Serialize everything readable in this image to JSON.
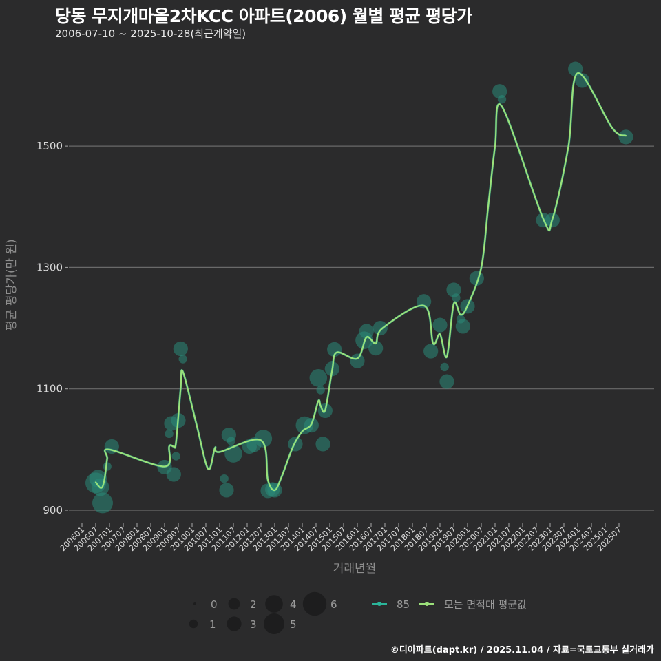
{
  "header": {
    "title": "당동 무지개마을2차KCC 아파트(2006) 월별 평균 평당가",
    "subtitle": "2006-07-10 ~ 2025-10-28(최근계약일)"
  },
  "footer": {
    "credit": "©디아파트(dapt.kr) / 2025.11.04 / 자료=국토교통부 실거래가"
  },
  "colors": {
    "background": "#2b2b2c",
    "grid": "#6a6a6a",
    "bubble": "#2a8a7a",
    "line_85": "#2bb59a",
    "line_avg": "#9be07a"
  },
  "chart_data": {
    "type": "line",
    "title": "당동 무지개마을2차KCC 아파트(2006) 월별 평균 평당가",
    "subtitle": "2006-07-10 ~ 2025-10-28(최근계약일)",
    "xlabel": "거래년월",
    "ylabel": "평균 평당가(만 원)",
    "ylim": [
      880,
      1650
    ],
    "yticks": [
      900,
      1100,
      1300,
      1500
    ],
    "xticks": [
      "200601",
      "200607",
      "200701",
      "200707",
      "200801",
      "200807",
      "200901",
      "200907",
      "201001",
      "201007",
      "201101",
      "201107",
      "201201",
      "201207",
      "201301",
      "201307",
      "201401",
      "201407",
      "201501",
      "201507",
      "201601",
      "201607",
      "201701",
      "201707",
      "201801",
      "201807",
      "201901",
      "201907",
      "202001",
      "202007",
      "202101",
      "202107",
      "202201",
      "202207",
      "202301",
      "202307",
      "202401",
      "202407",
      "202501",
      "202507"
    ],
    "grid": true,
    "legend": {
      "size_title": "",
      "size_entries": [
        "0",
        "1",
        "2",
        "3",
        "4",
        "5",
        "6"
      ],
      "line_entries": [
        "85",
        "모든 면적대 평균값"
      ]
    },
    "series": [
      {
        "name": "85",
        "kind": "bubble",
        "points": [
          {
            "x": "200607",
            "y": 945,
            "size": 5
          },
          {
            "x": "200608",
            "y": 952,
            "size": 4
          },
          {
            "x": "200609",
            "y": 938,
            "size": 4
          },
          {
            "x": "200610",
            "y": 912,
            "size": 5
          },
          {
            "x": "200612",
            "y": 972,
            "size": 1
          },
          {
            "x": "200702",
            "y": 1005,
            "size": 3
          },
          {
            "x": "200901",
            "y": 971,
            "size": 3
          },
          {
            "x": "200903",
            "y": 1026,
            "size": 1
          },
          {
            "x": "200904",
            "y": 1043,
            "size": 3
          },
          {
            "x": "200905",
            "y": 959,
            "size": 3
          },
          {
            "x": "200906",
            "y": 989,
            "size": 1
          },
          {
            "x": "200907",
            "y": 1048,
            "size": 3
          },
          {
            "x": "200908",
            "y": 1166,
            "size": 3
          },
          {
            "x": "200909",
            "y": 1149,
            "size": 1
          },
          {
            "x": "201103",
            "y": 952,
            "size": 1
          },
          {
            "x": "201104",
            "y": 933,
            "size": 3
          },
          {
            "x": "201105",
            "y": 1024,
            "size": 3
          },
          {
            "x": "201106",
            "y": 1014,
            "size": 1
          },
          {
            "x": "201107",
            "y": 993,
            "size": 4
          },
          {
            "x": "201202",
            "y": 1005,
            "size": 3
          },
          {
            "x": "201204",
            "y": 1008,
            "size": 3
          },
          {
            "x": "201208",
            "y": 1018,
            "size": 4
          },
          {
            "x": "201210",
            "y": 932,
            "size": 3
          },
          {
            "x": "201212",
            "y": 934,
            "size": 3
          },
          {
            "x": "201301",
            "y": 933,
            "size": 3
          },
          {
            "x": "201310",
            "y": 1009,
            "size": 3
          },
          {
            "x": "201402",
            "y": 1040,
            "size": 4
          },
          {
            "x": "201405",
            "y": 1040,
            "size": 3
          },
          {
            "x": "201408",
            "y": 1118,
            "size": 4
          },
          {
            "x": "201409",
            "y": 1098,
            "size": 1
          },
          {
            "x": "201410",
            "y": 1009,
            "size": 3
          },
          {
            "x": "201411",
            "y": 1064,
            "size": 3
          },
          {
            "x": "201502",
            "y": 1133,
            "size": 3
          },
          {
            "x": "201503",
            "y": 1165,
            "size": 3
          },
          {
            "x": "201601",
            "y": 1146,
            "size": 3
          },
          {
            "x": "201604",
            "y": 1180,
            "size": 4
          },
          {
            "x": "201605",
            "y": 1195,
            "size": 3
          },
          {
            "x": "201609",
            "y": 1167,
            "size": 3
          },
          {
            "x": "201611",
            "y": 1200,
            "size": 3
          },
          {
            "x": "201806",
            "y": 1244,
            "size": 3
          },
          {
            "x": "201809",
            "y": 1162,
            "size": 3
          },
          {
            "x": "201901",
            "y": 1205,
            "size": 3
          },
          {
            "x": "201903",
            "y": 1136,
            "size": 1
          },
          {
            "x": "201904",
            "y": 1112,
            "size": 3
          },
          {
            "x": "201907",
            "y": 1263,
            "size": 3
          },
          {
            "x": "201908",
            "y": 1250,
            "size": 1
          },
          {
            "x": "201910",
            "y": 1215,
            "size": 1
          },
          {
            "x": "201911",
            "y": 1203,
            "size": 3
          },
          {
            "x": "202001",
            "y": 1236,
            "size": 3
          },
          {
            "x": "202005",
            "y": 1282,
            "size": 3
          },
          {
            "x": "202103",
            "y": 1590,
            "size": 3
          },
          {
            "x": "202104",
            "y": 1577,
            "size": 1
          },
          {
            "x": "202210",
            "y": 1378,
            "size": 3
          },
          {
            "x": "202302",
            "y": 1378,
            "size": 3
          },
          {
            "x": "202312",
            "y": 1627,
            "size": 3
          },
          {
            "x": "202403",
            "y": 1608,
            "size": 3
          },
          {
            "x": "202510",
            "y": 1515,
            "size": 3
          }
        ]
      },
      {
        "name": "모든 면적대 평균값",
        "kind": "line",
        "points": [
          {
            "x": "200607",
            "y": 946
          },
          {
            "x": "200608",
            "y": 941
          },
          {
            "x": "200609",
            "y": 937
          },
          {
            "x": "200610",
            "y": 939
          },
          {
            "x": "200611",
            "y": 955
          },
          {
            "x": "200612",
            "y": 985
          },
          {
            "x": "200701",
            "y": 1000
          },
          {
            "x": "200901",
            "y": 972
          },
          {
            "x": "200903",
            "y": 1005
          },
          {
            "x": "200905",
            "y": 1005
          },
          {
            "x": "200906",
            "y": 1012
          },
          {
            "x": "200908",
            "y": 1100
          },
          {
            "x": "200909",
            "y": 1128
          },
          {
            "x": "201003",
            "y": 1040
          },
          {
            "x": "201008",
            "y": 968
          },
          {
            "x": "201011",
            "y": 1003
          },
          {
            "x": "201101",
            "y": 996
          },
          {
            "x": "201207",
            "y": 1015
          },
          {
            "x": "201210",
            "y": 950
          },
          {
            "x": "201301",
            "y": 933
          },
          {
            "x": "201304",
            "y": 955
          },
          {
            "x": "201309",
            "y": 1005
          },
          {
            "x": "201401",
            "y": 1030
          },
          {
            "x": "201405",
            "y": 1042
          },
          {
            "x": "201408",
            "y": 1080
          },
          {
            "x": "201409",
            "y": 1072
          },
          {
            "x": "201411",
            "y": 1065
          },
          {
            "x": "201502",
            "y": 1130
          },
          {
            "x": "201504",
            "y": 1160
          },
          {
            "x": "201601",
            "y": 1150
          },
          {
            "x": "201605",
            "y": 1185
          },
          {
            "x": "201609",
            "y": 1175
          },
          {
            "x": "201612",
            "y": 1200
          },
          {
            "x": "201806",
            "y": 1237
          },
          {
            "x": "201810",
            "y": 1175
          },
          {
            "x": "201901",
            "y": 1190
          },
          {
            "x": "201904",
            "y": 1153
          },
          {
            "x": "201907",
            "y": 1240
          },
          {
            "x": "201910",
            "y": 1222
          },
          {
            "x": "202001",
            "y": 1237
          },
          {
            "x": "202007",
            "y": 1300
          },
          {
            "x": "202010",
            "y": 1400
          },
          {
            "x": "202101",
            "y": 1500
          },
          {
            "x": "202104",
            "y": 1565
          },
          {
            "x": "202210",
            "y": 1380
          },
          {
            "x": "202302",
            "y": 1380
          },
          {
            "x": "202309",
            "y": 1500
          },
          {
            "x": "202401",
            "y": 1620
          },
          {
            "x": "202504",
            "y": 1530
          },
          {
            "x": "202510",
            "y": 1517
          }
        ]
      }
    ]
  }
}
